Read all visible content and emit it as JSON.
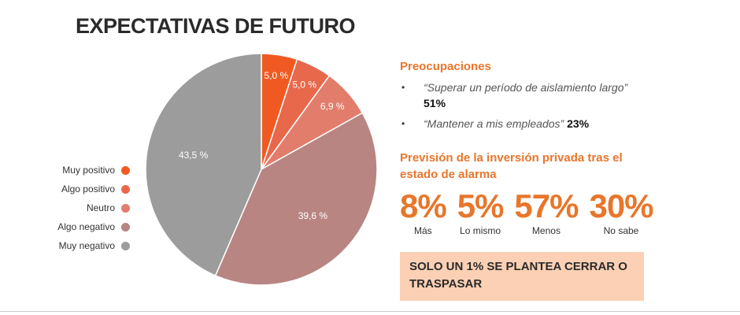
{
  "title": "EXPECTATIVAS DE FUTURO",
  "chart_data": {
    "type": "pie",
    "title": "",
    "slices": [
      {
        "label": "Muy positivo",
        "value": 5.0,
        "display": "5,0 %",
        "color": "#f05a22"
      },
      {
        "label": "Algo positivo",
        "value": 5.0,
        "display": "5,0 %",
        "color": "#e8684b"
      },
      {
        "label": "Neutro",
        "value": 6.9,
        "display": "6,9 %",
        "color": "#e27d6c"
      },
      {
        "label": "Algo negativo",
        "value": 39.6,
        "display": "39,6 %",
        "color": "#b88582"
      },
      {
        "label": "Muy negativo",
        "value": 43.5,
        "display": "43,5 %",
        "color": "#9c9c9c"
      }
    ],
    "legend_placement": "left"
  },
  "concerns": {
    "title": "Preocupaciones",
    "items": [
      {
        "quote": "“Superar un período de aislamiento largo”",
        "value": "51%"
      },
      {
        "quote": "“Mantener a mis empleados”",
        "value": "23%"
      }
    ]
  },
  "investment": {
    "title": "Previsión de la inversión privada tras el estado de alarma",
    "stats": [
      {
        "value": "8%",
        "label": "Más"
      },
      {
        "value": "5%",
        "label": "Lo mismo"
      },
      {
        "value": "57%",
        "label": "Menos"
      },
      {
        "value": "30%",
        "label": "No sabe"
      }
    ]
  },
  "callout": "SOLO UN 1% SE PLANTEA CERRAR O TRASPASAR",
  "colors": {
    "accent": "#e8762b",
    "callout_bg": "#fcd0b4"
  }
}
